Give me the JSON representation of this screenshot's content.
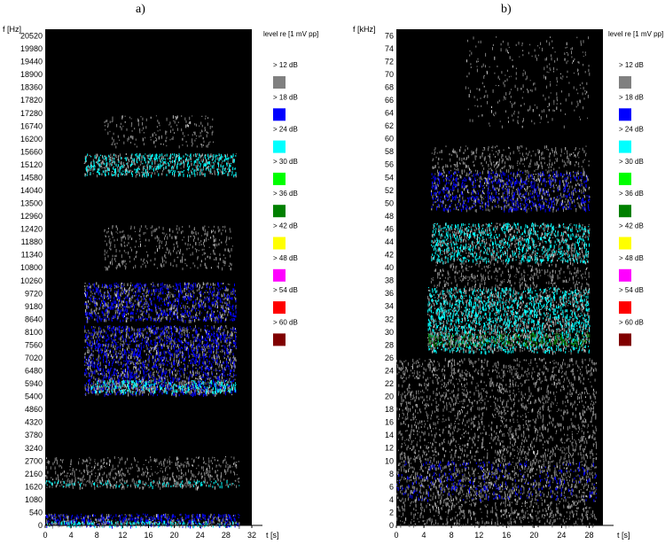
{
  "chart_data": [
    {
      "type": "heatmap",
      "panel_label": "a)",
      "ylabel": "f [Hz]",
      "xlabel": "t [s]",
      "legend_title": "level re [1 mV pp]",
      "xlim": [
        0,
        32
      ],
      "ylim": [
        0,
        20800
      ],
      "x_ticks": [
        0,
        4,
        8,
        12,
        16,
        20,
        24,
        28,
        32
      ],
      "y_ticks": [
        0,
        540,
        1080,
        1620,
        2160,
        2700,
        3240,
        3780,
        4320,
        4860,
        5400,
        5940,
        6480,
        7020,
        7560,
        8100,
        8640,
        9180,
        9720,
        10260,
        10800,
        11340,
        11880,
        12420,
        12960,
        13500,
        14040,
        14580,
        15120,
        15660,
        16200,
        16740,
        17280,
        17820,
        18360,
        18900,
        19440,
        19980,
        20520
      ],
      "active_time_range": [
        0,
        30
      ],
      "bands": [
        {
          "x": [
            6,
            29.5
          ],
          "y": [
            14700,
            15600
          ],
          "level": "> 24 dB",
          "density": 0.9
        },
        {
          "x": [
            6,
            29.5
          ],
          "y": [
            8600,
            10200
          ],
          "level": "> 18 dB",
          "density": 0.8
        },
        {
          "x": [
            6,
            29.5
          ],
          "y": [
            5500,
            8400
          ],
          "level": "> 18 dB",
          "density": 0.85
        },
        {
          "x": [
            7,
            29.5
          ],
          "y": [
            5600,
            6100
          ],
          "level": "> 24 dB",
          "density": 0.9
        },
        {
          "x": [
            9,
            29
          ],
          "y": [
            10800,
            12600
          ],
          "level": "> 12 dB",
          "density": 0.25
        },
        {
          "x": [
            9,
            26
          ],
          "y": [
            15900,
            17200
          ],
          "level": "> 12 dB",
          "density": 0.2
        },
        {
          "x": [
            0,
            30
          ],
          "y": [
            1600,
            2900
          ],
          "level": "> 12 dB",
          "density": 0.35
        },
        {
          "x": [
            0,
            30
          ],
          "y": [
            1650,
            1900
          ],
          "level": "> 24 dB",
          "density": 0.5
        },
        {
          "x": [
            0,
            30
          ],
          "y": [
            0,
            500
          ],
          "level": "> 18 dB",
          "density": 1.0
        },
        {
          "x": [
            0,
            30
          ],
          "y": [
            0,
            200
          ],
          "level": "> 24 dB",
          "density": 1.0
        }
      ]
    },
    {
      "type": "heatmap",
      "panel_label": "b)",
      "ylabel": "f [kHz]",
      "xlabel": "t [s]",
      "legend_title": "level re [1 mV pp]",
      "xlim": [
        0,
        30
      ],
      "ylim": [
        0,
        77
      ],
      "x_ticks": [
        0,
        4,
        8,
        12,
        16,
        20,
        24,
        28
      ],
      "y_ticks": [
        0,
        2,
        4,
        6,
        8,
        10,
        12,
        14,
        16,
        18,
        20,
        22,
        24,
        26,
        28,
        30,
        32,
        34,
        36,
        38,
        40,
        42,
        44,
        46,
        48,
        50,
        52,
        54,
        56,
        58,
        60,
        62,
        64,
        66,
        68,
        70,
        72,
        74,
        76
      ],
      "active_time_range": [
        0,
        29
      ],
      "bands": [
        {
          "x": [
            4.5,
            28
          ],
          "y": [
            27,
            37
          ],
          "level": "> 24 dB",
          "density": 0.9
        },
        {
          "x": [
            4.5,
            28
          ],
          "y": [
            28,
            30
          ],
          "level": "> 36 dB",
          "density": 0.7
        },
        {
          "x": [
            5,
            28
          ],
          "y": [
            41,
            47
          ],
          "level": "> 24 dB",
          "density": 0.8
        },
        {
          "x": [
            5,
            28
          ],
          "y": [
            49,
            55
          ],
          "level": "> 18 dB",
          "density": 0.7
        },
        {
          "x": [
            5,
            28
          ],
          "y": [
            55,
            59
          ],
          "level": "> 12 dB",
          "density": 0.3
        },
        {
          "x": [
            5,
            28
          ],
          "y": [
            37,
            41
          ],
          "level": "> 12 dB",
          "density": 0.3
        },
        {
          "x": [
            10,
            28
          ],
          "y": [
            62,
            76
          ],
          "level": "> 12 dB",
          "density": 0.1
        },
        {
          "x": [
            0,
            29
          ],
          "y": [
            0,
            26
          ],
          "level": "> 12 dB",
          "density": 0.35
        },
        {
          "x": [
            0,
            29
          ],
          "y": [
            4,
            10
          ],
          "level": "> 18 dB",
          "density": 0.25
        }
      ]
    }
  ],
  "legend": {
    "entries": [
      "> 12 dB",
      "> 18 dB",
      "> 24 dB",
      "> 30 dB",
      "> 36 dB",
      "> 42 dB",
      "> 48 dB",
      "> 54 dB",
      "> 60 dB"
    ],
    "colors": [
      "#808080",
      "#0000ff",
      "#00ffff",
      "#00ff00",
      "#008000",
      "#ffff00",
      "#ff00ff",
      "#ff0000",
      "#800000"
    ]
  }
}
